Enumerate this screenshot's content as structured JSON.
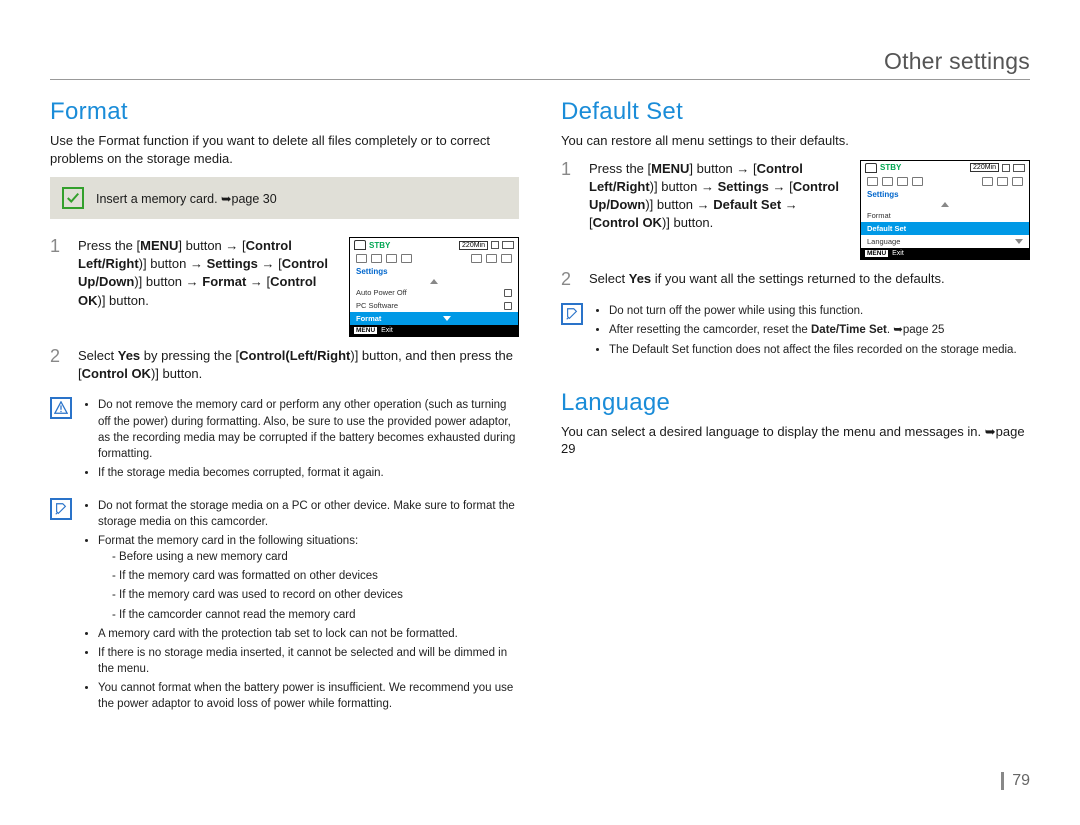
{
  "page": {
    "header": "Other settings",
    "number": "79"
  },
  "format": {
    "title": "Format",
    "intro": "Use the Format function if you want to delete all files completely or to correct problems on the storage media.",
    "insert_note": "Insert a memory card. ➥page 30",
    "step1_html": "Press the [<b>MENU</b>] button → [<b>Control Left/Right</b>)] button → <b>Settings</b> → [<b>Control Up/Down</b>)] button → <b>Format</b> → [<b>Control OK</b>)] button.",
    "step2_html": "Select <b>Yes</b> by pressing the [<b>Control(Left/Right</b>)] button, and then press the [<b>Control OK</b>)] button.",
    "warn": {
      "b1": "Do not remove the memory card or perform any other operation (such as turning off the power) during formatting. Also, be sure to use the provided power adaptor, as the recording media may be corrupted if the battery becomes exhausted during formatting.",
      "b2": "If the storage media becomes corrupted, format it again."
    },
    "tip": {
      "b1": "Do not format the storage media on a PC or other device. Make sure to format the storage media on this camcorder.",
      "b2": "Format the memory card in the following situations:",
      "s1": "Before using a new memory card",
      "s2": "If the memory card was formatted on other devices",
      "s3": "If the memory card was used to record on other devices",
      "s4": "If the camcorder cannot read the memory card",
      "b3": "A memory card with the protection tab set to lock can not be formatted.",
      "b4": "If there is no storage media inserted, it cannot be selected and will be dimmed in the menu.",
      "b5": "You cannot format when the battery power is insufficient. We recommend you use the power adaptor to avoid loss of power while formatting."
    },
    "lcd": {
      "stby": "STBY",
      "time": "220Min",
      "heading": "Settings",
      "i1": "Auto Power Off",
      "i2": "PC Software",
      "sel": "Format",
      "menu": "MENU",
      "exit": "Exit"
    }
  },
  "default_set": {
    "title": "Default Set",
    "intro": "You can restore all menu settings to their defaults.",
    "step1_html": "Press the [<b>MENU</b>] button → [<b>Control Left/Right</b>)] button → <b>Settings</b> → [<b>Control Up/Down</b>)] button → <b>Default Set</b> → [<b>Control OK</b>)] button.",
    "step2_html": "Select <b>Yes</b> if you want all the settings returned to the defaults.",
    "tip": {
      "b1": "Do not turn off the power while using this function.",
      "b2_html": "After resetting the camcorder, reset the <b>Date/Time Set</b>. ➥page 25",
      "b3": "The Default Set function does not affect the files recorded on the storage media."
    },
    "lcd": {
      "stby": "STBY",
      "time": "220Min",
      "heading": "Settings",
      "i1": "Format",
      "sel": "Default Set",
      "i3": "Language",
      "menu": "MENU",
      "exit": "Exit"
    }
  },
  "language": {
    "title": "Language",
    "intro": "You can select a desired language to display the menu and messages in. ➥page 29"
  }
}
